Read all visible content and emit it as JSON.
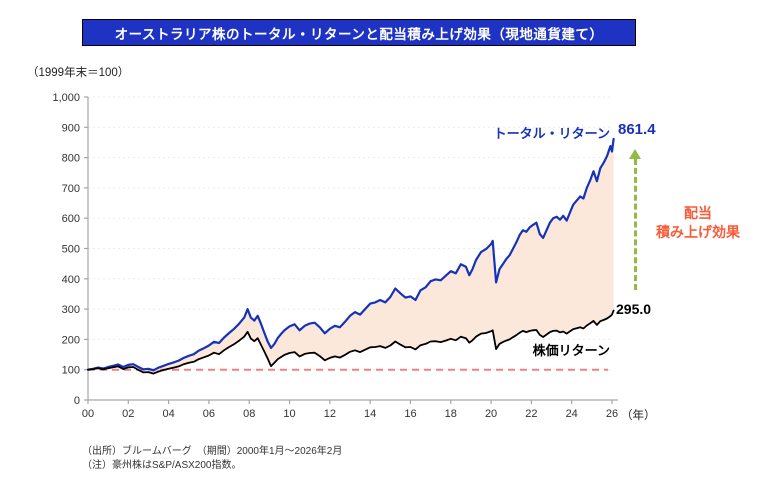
{
  "title": "オーストラリア株のトータル・リターンと配当積み上げ効果（現地通貨建て）",
  "axis_note": "（1999年末＝100）",
  "x_axis_unit": "（年）",
  "labels": {
    "dividend_line1": "配当",
    "dividend_line2": "積み上げ効果"
  },
  "footnotes": [
    "（出所）ブルームバーグ　（期間）2000年1月～2026年2月",
    "（注）豪州株はS&P/ASX200指数。"
  ],
  "colors": {
    "banner_bg": "#1E32C3",
    "banner_border": "#000000",
    "total_line": "#1632B8",
    "price_line": "#000000",
    "area_fill": "#FBE8DB",
    "baseline": "#F28080",
    "arrow": "#8FBC45",
    "dividend_text": "#FA5B38",
    "axis": "#A6A6A6",
    "grid": "#EBEBEB",
    "tick_text": "#333333"
  },
  "chart_data": {
    "type": "line",
    "title": "オーストラリア株のトータル・リターンと配当積み上げ効果（現地通貨建て）",
    "subtitle": "（1999年末＝100）",
    "xlabel": "年",
    "ylabel": "",
    "grid": true,
    "legend_position": "inline-annotations",
    "xlim": [
      2000,
      2026
    ],
    "ylim": [
      0,
      1000
    ],
    "yticks": [
      0,
      100,
      200,
      300,
      400,
      500,
      600,
      700,
      800,
      900,
      1000
    ],
    "ytick_labels": [
      "0",
      "100",
      "200",
      "300",
      "400",
      "500",
      "600",
      "700",
      "800",
      "900",
      "1,000"
    ],
    "xticks": [
      2000,
      2002,
      2004,
      2006,
      2008,
      2010,
      2012,
      2014,
      2016,
      2018,
      2020,
      2022,
      2024,
      2026
    ],
    "xtick_labels": [
      "00",
      "02",
      "04",
      "06",
      "08",
      "10",
      "12",
      "14",
      "16",
      "18",
      "20",
      "22",
      "24",
      "26"
    ],
    "baseline_value": 100,
    "area_between_series": true,
    "annotation": "配当積み上げ効果",
    "x": [
      2000.0,
      2000.25,
      2000.5,
      2000.75,
      2001.0,
      2001.25,
      2001.5,
      2001.75,
      2002.0,
      2002.25,
      2002.5,
      2002.75,
      2003.0,
      2003.25,
      2003.5,
      2003.75,
      2004.0,
      2004.25,
      2004.5,
      2004.75,
      2005.0,
      2005.25,
      2005.5,
      2005.75,
      2006.0,
      2006.25,
      2006.5,
      2006.75,
      2007.0,
      2007.25,
      2007.5,
      2007.75,
      2007.92,
      2008.08,
      2008.25,
      2008.42,
      2008.58,
      2008.75,
      2008.92,
      2009.08,
      2009.25,
      2009.42,
      2009.58,
      2009.75,
      2010.0,
      2010.25,
      2010.5,
      2010.75,
      2011.0,
      2011.25,
      2011.5,
      2011.75,
      2012.0,
      2012.25,
      2012.5,
      2012.75,
      2013.0,
      2013.25,
      2013.5,
      2013.75,
      2014.0,
      2014.25,
      2014.5,
      2014.75,
      2015.0,
      2015.25,
      2015.5,
      2015.75,
      2016.0,
      2016.25,
      2016.5,
      2016.75,
      2017.0,
      2017.25,
      2017.5,
      2017.75,
      2018.0,
      2018.25,
      2018.5,
      2018.75,
      2018.92,
      2019.08,
      2019.25,
      2019.5,
      2019.75,
      2020.0,
      2020.08,
      2020.25,
      2020.42,
      2020.58,
      2020.75,
      2020.92,
      2021.08,
      2021.25,
      2021.42,
      2021.58,
      2021.75,
      2021.92,
      2022.08,
      2022.25,
      2022.42,
      2022.58,
      2022.75,
      2022.92,
      2023.08,
      2023.25,
      2023.42,
      2023.58,
      2023.75,
      2023.92,
      2024.08,
      2024.25,
      2024.42,
      2024.58,
      2024.75,
      2024.92,
      2025.08,
      2025.25,
      2025.42,
      2025.58,
      2025.75,
      2025.92,
      2026.0,
      2026.08
    ],
    "series": [
      {
        "name": "トータル・リターン",
        "color": "#1632B8",
        "end_label": "861.4",
        "end_value": 861.4,
        "values": [
          100,
          103,
          107,
          104,
          109,
          113,
          117,
          109,
          116,
          118,
          109,
          101,
          103,
          98,
          107,
          113,
          119,
          124,
          130,
          139,
          146,
          151,
          163,
          171,
          180,
          192,
          188,
          206,
          221,
          235,
          252,
          272,
          300,
          272,
          262,
          278,
          252,
          222,
          192,
          172,
          185,
          205,
          218,
          230,
          243,
          250,
          230,
          245,
          252,
          255,
          240,
          220,
          235,
          245,
          240,
          258,
          278,
          290,
          282,
          300,
          318,
          322,
          330,
          322,
          340,
          368,
          352,
          338,
          342,
          330,
          362,
          372,
          392,
          398,
          395,
          410,
          425,
          418,
          448,
          440,
          412,
          432,
          462,
          488,
          498,
          515,
          525,
          388,
          432,
          448,
          465,
          478,
          498,
          520,
          545,
          560,
          555,
          570,
          578,
          585,
          548,
          535,
          560,
          585,
          600,
          605,
          595,
          608,
          592,
          620,
          645,
          658,
          672,
          665,
          700,
          725,
          755,
          722,
          765,
          782,
          805,
          838,
          820,
          861.4
        ]
      },
      {
        "name": "株価リターン",
        "color": "#000000",
        "end_label": "295.0",
        "end_value": 295.0,
        "values": [
          100,
          102,
          105,
          101,
          105,
          108,
          111,
          102,
          108,
          109,
          99,
          91,
          92,
          87,
          94,
          99,
          103,
          107,
          111,
          118,
          123,
          126,
          135,
          141,
          147,
          156,
          151,
          164,
          175,
          184,
          196,
          209,
          225,
          203,
          194,
          204,
          183,
          160,
          136,
          112,
          123,
          135,
          142,
          149,
          155,
          158,
          144,
          152,
          155,
          156,
          145,
          131,
          139,
          144,
          140,
          149,
          159,
          164,
          158,
          166,
          174,
          175,
          178,
          172,
          180,
          193,
          183,
          174,
          175,
          167,
          181,
          185,
          193,
          194,
          191,
          196,
          202,
          197,
          209,
          204,
          189,
          197,
          209,
          219,
          221,
          227,
          230,
          168,
          185,
          191,
          196,
          200,
          207,
          214,
          222,
          228,
          224,
          228,
          230,
          231,
          215,
          208,
          216,
          224,
          228,
          229,
          223,
          226,
          219,
          227,
          234,
          237,
          240,
          236,
          246,
          253,
          261,
          248,
          260,
          264,
          269,
          277,
          282,
          295.0
        ]
      }
    ]
  }
}
